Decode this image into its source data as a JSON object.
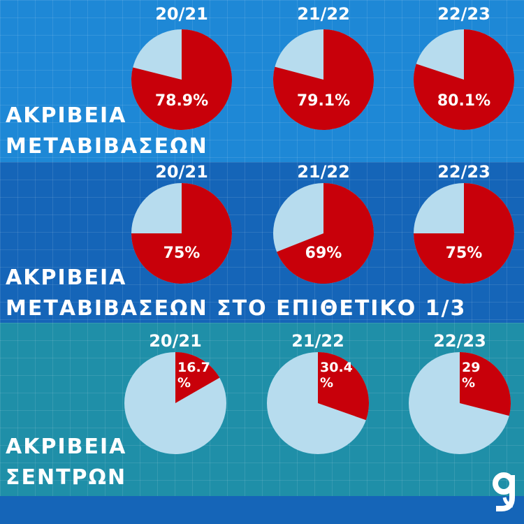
{
  "colors": {
    "band1": "#1e88d6",
    "band2": "#1565b8",
    "band3": "#1f8fa8",
    "bottom_strip": "#1565b8",
    "red": "#c8000a",
    "light": "#b7dcee"
  },
  "chart_data": [
    {
      "type": "pie",
      "title": "ΑΚΡΙΒΕΙΑ ΜΕΤΑΒΙΒΑΣΕΩΝ",
      "series": [
        {
          "name": "20/21",
          "value": 78.9,
          "label": "78.9%"
        },
        {
          "name": "21/22",
          "value": 79.1,
          "label": "79.1%"
        },
        {
          "name": "22/23",
          "value": 80.1,
          "label": "80.1%"
        }
      ]
    },
    {
      "type": "pie",
      "title": "ΑΚΡΙΒΕΙΑ ΜΕΤΑΒΙΒΑΣΕΩΝ ΣΤΟ ΕΠΙΘΕΤΙΚΟ 1/3",
      "series": [
        {
          "name": "20/21",
          "value": 75,
          "label": "75%"
        },
        {
          "name": "21/22",
          "value": 69,
          "label": "69%"
        },
        {
          "name": "22/23",
          "value": 75,
          "label": "75%"
        }
      ]
    },
    {
      "type": "pie",
      "title": "ΑΚΡΙΒΕΙΑ ΣΕΝΤΡΩΝ",
      "series": [
        {
          "name": "20/21",
          "value": 16.7,
          "label": "16.7 %"
        },
        {
          "name": "21/22",
          "value": 30.4,
          "label": "30.4 %"
        },
        {
          "name": "22/23",
          "value": 29,
          "label": "29 %"
        }
      ]
    }
  ],
  "titles": {
    "passing_line1": "ΑΚΡΙΒΕΙΑ",
    "passing_line2": "ΜΕΤΑΒΙΒΑΣΕΩΝ",
    "final_third_line1": "ΑΚΡΙΒΕΙΑ",
    "final_third_line2": "ΜΕΤΑΒΙΒΑΣΕΩΝ ΣΤΟ ΕΠΙΘΕΤΙΚΟ 1/3",
    "crosses_line1": "ΑΚΡΙΒΕΙΑ",
    "crosses_line2": "ΣΕΝΤΡΩΝ"
  },
  "logo": {
    "icon": "g-logo-icon"
  }
}
